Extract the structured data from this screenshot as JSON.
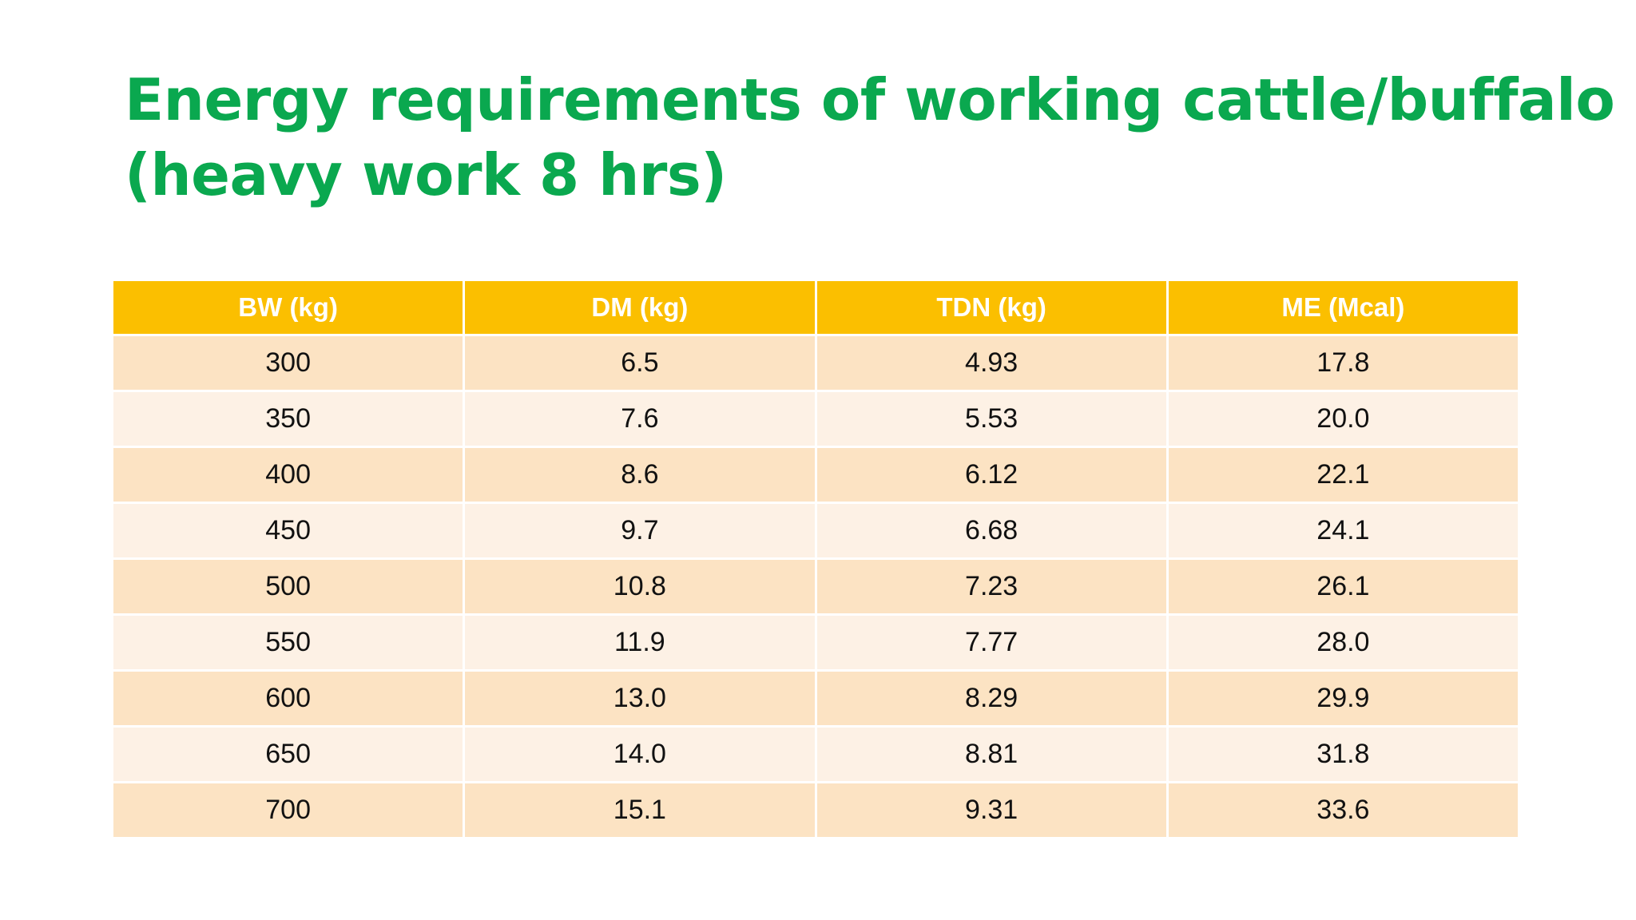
{
  "title": {
    "line1": "Energy requirements of working cattle/buffalo",
    "line2": "(heavy work 8 hrs)"
  },
  "colors": {
    "title": "#0aa84f",
    "header_bg": "#fbbf00",
    "row_odd": "#fce3c3",
    "row_even": "#fdf1e5"
  },
  "table": {
    "headers": [
      "BW (kg)",
      "DM (kg)",
      "TDN (kg)",
      "ME (Mcal)"
    ],
    "rows": [
      [
        "300",
        "6.5",
        "4.93",
        "17.8"
      ],
      [
        "350",
        "7.6",
        "5.53",
        "20.0"
      ],
      [
        "400",
        "8.6",
        "6.12",
        "22.1"
      ],
      [
        "450",
        "9.7",
        "6.68",
        "24.1"
      ],
      [
        "500",
        "10.8",
        "7.23",
        "26.1"
      ],
      [
        "550",
        "11.9",
        "7.77",
        "28.0"
      ],
      [
        "600",
        "13.0",
        "8.29",
        "29.9"
      ],
      [
        "650",
        "14.0",
        "8.81",
        "31.8"
      ],
      [
        "700",
        "15.1",
        "9.31",
        "33.6"
      ]
    ]
  }
}
